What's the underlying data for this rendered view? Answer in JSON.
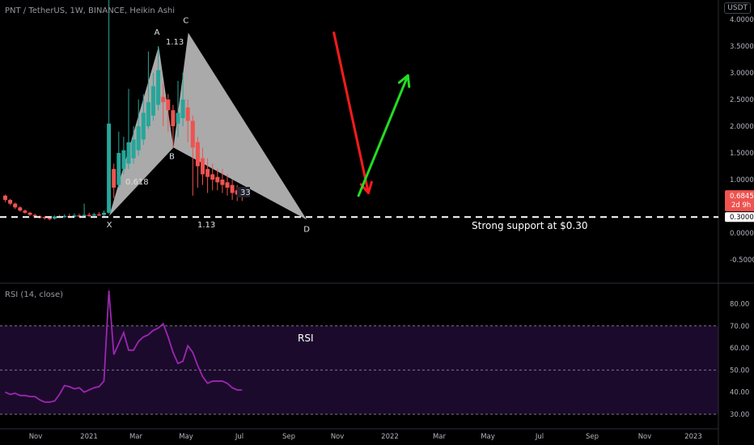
{
  "header": {
    "title": "PNT / TetherUS, 1W, BINANCE, Heikin Ashi",
    "currency_badge": "USDT",
    "rsi_title": "RSI (14, close)"
  },
  "colors": {
    "background": "#000000",
    "up": "#26a69a",
    "down": "#ef5350",
    "pattern_fill": "#c8c8c8",
    "rsi_line": "#9c27b0",
    "rsi_band": "#1c0a2c",
    "arrow_down": "#ff1a1a",
    "arrow_up": "#22dd22",
    "support_line": "#ffffff"
  },
  "chart_data": [
    {
      "type": "candlestick",
      "title": "PNT / TetherUS, 1W, BINANCE, Heikin Ashi",
      "y_ticks": [
        -0.5,
        0,
        0.5,
        1,
        1.5,
        2,
        2.5,
        3,
        3.5,
        4
      ],
      "y_tick_labels": [
        "-0.5000",
        "0.0000",
        "0.5000",
        "1.0000",
        "1.5000",
        "2.0000",
        "2.5000",
        "3.0000",
        "3.5000",
        "4.0000"
      ],
      "x_tick_labels": [
        "Nov",
        "2021",
        "Mar",
        "May",
        "Jul",
        "Sep",
        "Nov",
        "2022",
        "Mar",
        "May",
        "Jul",
        "Sep",
        "Nov",
        "2023"
      ],
      "candles": [
        {
          "o": 0.7,
          "c": 0.62,
          "h": 0.72,
          "l": 0.58
        },
        {
          "o": 0.62,
          "c": 0.55,
          "h": 0.64,
          "l": 0.52
        },
        {
          "o": 0.55,
          "c": 0.48,
          "h": 0.57,
          "l": 0.45
        },
        {
          "o": 0.48,
          "c": 0.42,
          "h": 0.5,
          "l": 0.4
        },
        {
          "o": 0.42,
          "c": 0.38,
          "h": 0.44,
          "l": 0.36
        },
        {
          "o": 0.38,
          "c": 0.34,
          "h": 0.4,
          "l": 0.32
        },
        {
          "o": 0.34,
          "c": 0.31,
          "h": 0.36,
          "l": 0.29
        },
        {
          "o": 0.31,
          "c": 0.3,
          "h": 0.33,
          "l": 0.27
        },
        {
          "o": 0.3,
          "c": 0.28,
          "h": 0.32,
          "l": 0.25
        },
        {
          "o": 0.28,
          "c": 0.27,
          "h": 0.3,
          "l": 0.24
        },
        {
          "o": 0.27,
          "c": 0.31,
          "h": 0.33,
          "l": 0.25
        },
        {
          "o": 0.31,
          "c": 0.3,
          "h": 0.34,
          "l": 0.28
        },
        {
          "o": 0.3,
          "c": 0.32,
          "h": 0.35,
          "l": 0.28
        },
        {
          "o": 0.32,
          "c": 0.31,
          "h": 0.36,
          "l": 0.29
        },
        {
          "o": 0.31,
          "c": 0.33,
          "h": 0.37,
          "l": 0.29
        },
        {
          "o": 0.33,
          "c": 0.32,
          "h": 0.36,
          "l": 0.3
        },
        {
          "o": 0.32,
          "c": 0.34,
          "h": 0.55,
          "l": 0.3
        },
        {
          "o": 0.34,
          "c": 0.33,
          "h": 0.38,
          "l": 0.3
        },
        {
          "o": 0.33,
          "c": 0.35,
          "h": 0.38,
          "l": 0.31
        },
        {
          "o": 0.35,
          "c": 0.34,
          "h": 0.39,
          "l": 0.32
        },
        {
          "o": 0.34,
          "c": 0.38,
          "h": 0.42,
          "l": 0.3
        },
        {
          "o": 0.38,
          "c": 2.05,
          "h": 4.4,
          "l": 0.36
        },
        {
          "o": 1.2,
          "c": 0.85,
          "h": 1.3,
          "l": 0.65
        },
        {
          "o": 0.9,
          "c": 1.5,
          "h": 1.9,
          "l": 0.85
        },
        {
          "o": 1.2,
          "c": 1.55,
          "h": 1.8,
          "l": 1.1
        },
        {
          "o": 1.3,
          "c": 1.7,
          "h": 2.7,
          "l": 1.2
        },
        {
          "o": 1.4,
          "c": 1.75,
          "h": 2.0,
          "l": 1.3
        },
        {
          "o": 1.55,
          "c": 2.0,
          "h": 2.5,
          "l": 1.45
        },
        {
          "o": 1.75,
          "c": 2.25,
          "h": 2.6,
          "l": 1.65
        },
        {
          "o": 2.0,
          "c": 2.45,
          "h": 3.4,
          "l": 1.95
        },
        {
          "o": 2.2,
          "c": 2.75,
          "h": 3.0,
          "l": 2.1
        },
        {
          "o": 2.4,
          "c": 3.05,
          "h": 3.5,
          "l": 2.3
        },
        {
          "o": 2.55,
          "c": 2.45,
          "h": 2.8,
          "l": 2.0
        },
        {
          "o": 2.5,
          "c": 2.3,
          "h": 2.6,
          "l": 1.9
        },
        {
          "o": 2.3,
          "c": 2.0,
          "h": 2.4,
          "l": 1.6
        },
        {
          "o": 2.05,
          "c": 2.25,
          "h": 2.85,
          "l": 1.8
        },
        {
          "o": 2.15,
          "c": 2.5,
          "h": 3.0,
          "l": 2.0
        },
        {
          "o": 2.35,
          "c": 2.1,
          "h": 2.5,
          "l": 1.7
        },
        {
          "o": 2.1,
          "c": 1.6,
          "h": 2.2,
          "l": 0.7
        },
        {
          "o": 1.7,
          "c": 1.25,
          "h": 1.8,
          "l": 0.85
        },
        {
          "o": 1.4,
          "c": 1.1,
          "h": 1.6,
          "l": 0.9
        },
        {
          "o": 1.2,
          "c": 1.05,
          "h": 1.4,
          "l": 0.75
        },
        {
          "o": 1.1,
          "c": 1.0,
          "h": 1.3,
          "l": 0.8
        },
        {
          "o": 1.05,
          "c": 0.95,
          "h": 1.2,
          "l": 0.8
        },
        {
          "o": 1.0,
          "c": 0.9,
          "h": 1.2,
          "l": 0.75
        },
        {
          "o": 0.95,
          "c": 0.85,
          "h": 1.1,
          "l": 0.7
        },
        {
          "o": 0.9,
          "c": 0.75,
          "h": 1.0,
          "l": 0.62
        },
        {
          "o": 0.8,
          "c": 0.72,
          "h": 0.9,
          "l": 0.6
        },
        {
          "o": 0.75,
          "c": 0.68,
          "h": 0.82,
          "l": 0.6
        }
      ],
      "price_labels": {
        "last": "0.6845",
        "countdown": "2d 9h",
        "support": "0.3000"
      },
      "support_line": {
        "value": 0.3,
        "label": "Strong support at $0.30"
      },
      "harmonic_pattern": {
        "points": {
          "X": {
            "candle": 21,
            "price": 0.32
          },
          "A": {
            "candle": 31,
            "price": 3.5
          },
          "B": {
            "candle": 34,
            "price": 1.6
          },
          "C": {
            "candle": 37,
            "price": 3.75
          },
          "D": {
            "candle": 61,
            "price": 0.25
          }
        },
        "labels": {
          "X": "X",
          "A": "A",
          "B": "B",
          "C": "C",
          "D": "D"
        },
        "ratios": {
          "xb": "0.618",
          "ac": "1.13",
          "bd": "1.13",
          "xd": "33"
        }
      },
      "arrows": [
        {
          "direction": "down",
          "from": {
            "candle": 67,
            "price": 3.75
          },
          "to": {
            "candle": 74,
            "price": 0.75
          }
        },
        {
          "direction": "up",
          "from": {
            "candle": 72,
            "price": 0.7
          },
          "to": {
            "candle": 82,
            "price": 2.95
          }
        }
      ]
    },
    {
      "type": "line",
      "title": "RSI (14, close)",
      "annotation": "RSI",
      "y_ticks": [
        30,
        40,
        50,
        60,
        70,
        80
      ],
      "y_tick_labels": [
        "30.00",
        "40.00",
        "50.00",
        "60.00",
        "70.00",
        "80.00"
      ],
      "band": [
        30,
        70
      ],
      "mid": 50,
      "series": [
        {
          "values": [
            40,
            39,
            39.5,
            38.5,
            38.5,
            38,
            38,
            36.5,
            35.5,
            35.5,
            36,
            39,
            43,
            42.5,
            41.5,
            42,
            40,
            41,
            42,
            42.5,
            45,
            86,
            57,
            62,
            67,
            59,
            59,
            63,
            65,
            66,
            68,
            69,
            71,
            65,
            58,
            53,
            54,
            61,
            58,
            52,
            47,
            44,
            45,
            45,
            45,
            44,
            42,
            41,
            41
          ]
        }
      ]
    }
  ]
}
